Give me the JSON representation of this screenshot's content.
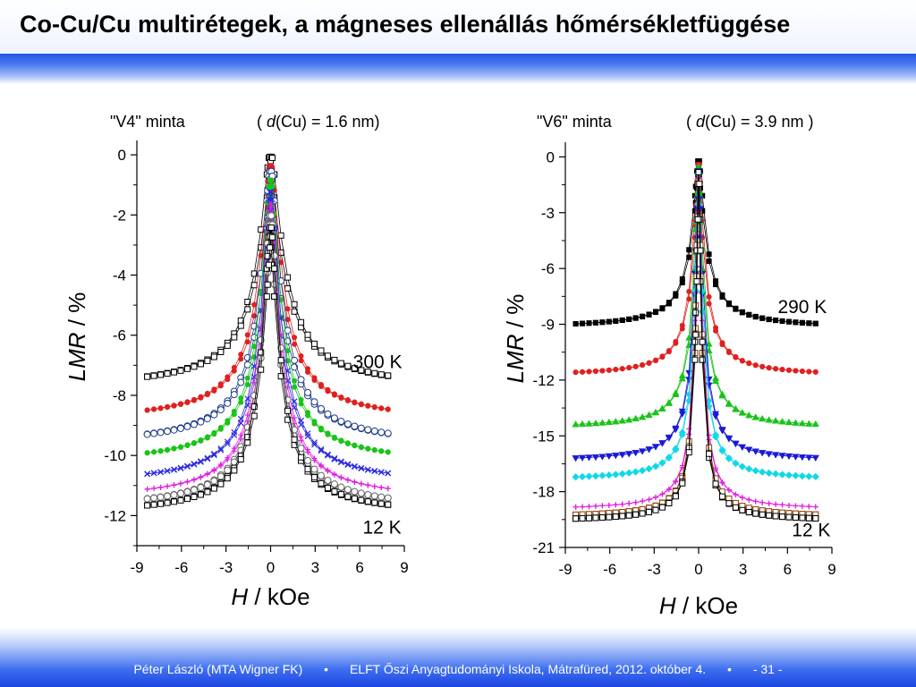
{
  "slide": {
    "title": "Co-Cu/Cu multirétegek, a mágneses ellenállás hőmérsékletfüggése",
    "footer": {
      "author": "Péter László (MTA Wigner FK)",
      "separator": "•",
      "event": "ELFT Őszi Anyagtudományi Iskola, Mátrafüred, 2012. október 4.",
      "page": "- 31 -"
    }
  },
  "chart_data": [
    {
      "type": "scatter",
      "sample_label": "\"V4\" minta",
      "thickness_label_prefix": "( ",
      "thickness_label_italic": "d",
      "thickness_label_suffix": "(Cu) = 1.6 nm)",
      "xlabel_italic": "H",
      "xlabel_rest": " / kOe",
      "ylabel_italic": "LMR",
      "ylabel_rest": " / %",
      "xlim": [
        -9,
        9
      ],
      "ylim": [
        -13,
        0.3
      ],
      "xticks": [
        -9,
        -6,
        -3,
        0,
        3,
        6,
        9
      ],
      "yticks": [
        0,
        -2,
        -4,
        -6,
        -8,
        -10,
        -12
      ],
      "annotations": [
        {
          "text": "300 K",
          "x": 7.2,
          "y": -7.1
        },
        {
          "text": "12 K",
          "x": 7.5,
          "y": -12.6
        }
      ],
      "series": [
        {
          "temp_rank": 0,
          "color": "#000000",
          "marker": "open-square",
          "sat": -7.8,
          "peak": 0.0,
          "width": 1.0
        },
        {
          "temp_rank": 1,
          "color": "#e02020",
          "marker": "dot",
          "sat": -8.9,
          "peak": -0.3,
          "width": 0.9
        },
        {
          "temp_rank": 2,
          "color": "#1e3a8a",
          "marker": "open-circle",
          "sat": -9.7,
          "peak": -0.5,
          "width": 0.85
        },
        {
          "temp_rank": 3,
          "color": "#19c419",
          "marker": "dot",
          "sat": -10.3,
          "peak": -0.8,
          "width": 0.8
        },
        {
          "temp_rank": 4,
          "color": "#2a2ae0",
          "marker": "cross",
          "sat": -11.0,
          "peak": -1.2,
          "width": 0.78
        },
        {
          "temp_rank": 5,
          "color": "#e020e0",
          "marker": "plus",
          "sat": -11.5,
          "peak": -1.6,
          "width": 0.76
        },
        {
          "temp_rank": 6,
          "color": "#666666",
          "marker": "open-circle",
          "sat": -11.8,
          "peak": -2.0,
          "width": 0.74
        },
        {
          "temp_rank": 7,
          "color": "#000000",
          "marker": "open-square",
          "sat": -12.0,
          "peak": -2.4,
          "width": 0.72
        }
      ]
    },
    {
      "type": "scatter",
      "sample_label": "\"V6\" minta",
      "thickness_label_prefix": "( ",
      "thickness_label_italic": "d",
      "thickness_label_suffix": "(Cu) = 3.9 nm )",
      "xlabel_italic": "H",
      "xlabel_rest": " / kOe",
      "ylabel_italic": "LMR",
      "ylabel_rest": " / %",
      "xlim": [
        -9,
        9
      ],
      "ylim": [
        -21,
        0.5
      ],
      "xticks": [
        -9,
        -6,
        -3,
        0,
        3,
        6,
        9
      ],
      "yticks": [
        0,
        -3,
        -6,
        -9,
        -12,
        -15,
        -18,
        -21
      ],
      "annotations": [
        {
          "text": "290 K",
          "x": 7.0,
          "y": -8.4
        },
        {
          "text": "12 K",
          "x": 7.6,
          "y": -20.4
        }
      ],
      "series": [
        {
          "temp_rank": 0,
          "color": "#000000",
          "marker": "square",
          "sat": -9.2,
          "peak": -0.2,
          "width": 0.55
        },
        {
          "temp_rank": 1,
          "color": "#e02020",
          "marker": "dot",
          "sat": -11.8,
          "peak": -0.3,
          "width": 0.45
        },
        {
          "temp_rank": 2,
          "color": "#19c419",
          "marker": "triangle-up",
          "sat": -14.6,
          "peak": -0.3,
          "width": 0.38
        },
        {
          "temp_rank": 3,
          "color": "#1a1ad6",
          "marker": "triangle-down",
          "sat": -16.4,
          "peak": -0.3,
          "width": 0.33
        },
        {
          "temp_rank": 4,
          "color": "#10d8e8",
          "marker": "diamond",
          "sat": -17.4,
          "peak": -0.3,
          "width": 0.3
        },
        {
          "temp_rank": 5,
          "color": "#e020e0",
          "marker": "plus",
          "sat": -19.0,
          "peak": -0.2,
          "width": 0.26
        },
        {
          "temp_rank": 6,
          "color": "#8b4513",
          "marker": "open-square",
          "sat": -19.4,
          "peak": -0.2,
          "width": 0.24
        },
        {
          "temp_rank": 7,
          "color": "#000000",
          "marker": "open-square",
          "sat": -19.6,
          "peak": -0.2,
          "width": 0.23
        }
      ]
    }
  ]
}
